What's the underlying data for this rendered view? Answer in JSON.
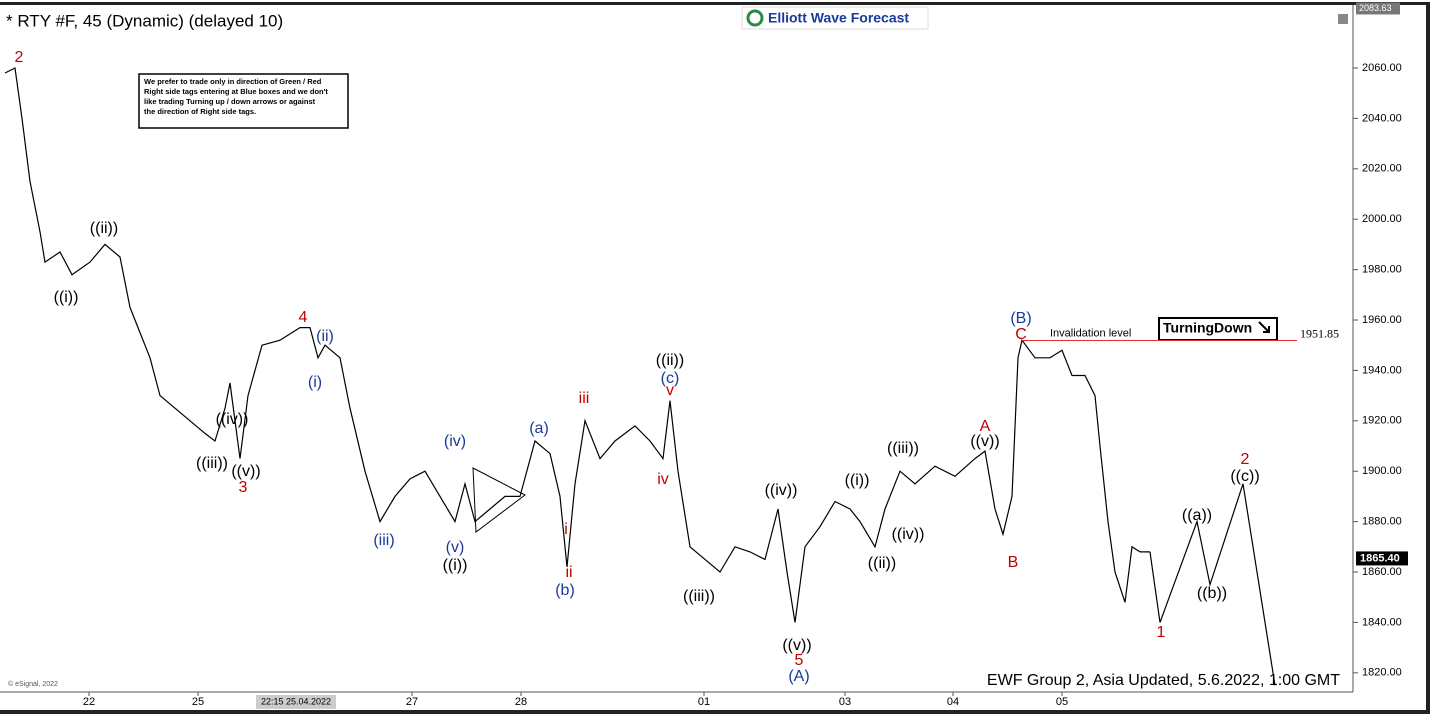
{
  "chart_data": {
    "type": "line",
    "title": "* RTY #F, 45 (Dynamic) (delayed 10)",
    "logo": "Elliott Wave Forecast",
    "note": [
      "We prefer to trade only in direction of Green / Red",
      "Right side tags entering at Blue boxes and we don't",
      "like trading Turning up / down arrows or against",
      "the direction of Right side tags."
    ],
    "footer": "EWF Group 2, Asia Updated, 5.6.2022, 1:00 GMT",
    "copyright": "© eSignal, 2022",
    "crosshair_label": "22:15 25.04.2022",
    "ylim": [
      1812,
      2085
    ],
    "xlim": [
      -1,
      269
    ],
    "yticks": [
      {
        "value": 1820,
        "label": "1820.00"
      },
      {
        "value": 1840,
        "label": "1840.00"
      },
      {
        "value": 1860,
        "label": "1860.00"
      },
      {
        "value": 1880,
        "label": "1880.00"
      },
      {
        "value": 1900,
        "label": "1900.00"
      },
      {
        "value": 1920,
        "label": "1920.00"
      },
      {
        "value": 1940,
        "label": "1940.00"
      },
      {
        "value": 1960,
        "label": "1960.00"
      },
      {
        "value": 1980,
        "label": "1980.00"
      },
      {
        "value": 2000,
        "label": "2000.00"
      },
      {
        "value": 2020,
        "label": "2020.00"
      },
      {
        "value": 2040,
        "label": "2040.00"
      },
      {
        "value": 2060,
        "label": "2060.00"
      }
    ],
    "xticks": [
      {
        "value": 16.8,
        "label": "22"
      },
      {
        "value": 38.6,
        "label": "25"
      },
      {
        "value": 81.4,
        "label": "27"
      },
      {
        "value": 103.2,
        "label": "28"
      },
      {
        "value": 139.8,
        "label": "01"
      },
      {
        "value": 168,
        "label": "03"
      },
      {
        "value": 189.6,
        "label": "04"
      },
      {
        "value": 211.4,
        "label": "05"
      }
    ],
    "series": [
      {
        "color": "#000000",
        "x": [
          0,
          2,
          3.4,
          5,
          7,
          8,
          11,
          13.4,
          17,
          20,
          23,
          25,
          27,
          29,
          31,
          34,
          37,
          40,
          42,
          44,
          45,
          47,
          48.6,
          51.4,
          55,
          59,
          61,
          62.6,
          64,
          67,
          69,
          72,
          75,
          78,
          81,
          84,
          87,
          90,
          92,
          94,
          97,
          100,
          103,
          106,
          109,
          111,
          112.4,
          114,
          116,
          119,
          122,
          126,
          129,
          131.6,
          133,
          134.6,
          137,
          140,
          143,
          146,
          149,
          152,
          154.6,
          156.4,
          158,
          160,
          163,
          166,
          169,
          171,
          174,
          176,
          179,
          182,
          186,
          190,
          194,
          196,
          198,
          199.6,
          201.4,
          202.6,
          203.4,
          206,
          209,
          211.4,
          213.4,
          216,
          218,
          219,
          220.6,
          222,
          224,
          225.4,
          227,
          229
        ],
        "values": [
          2058,
          2060,
          2040,
          2015,
          1995,
          1983,
          1987,
          1978,
          1983,
          1990,
          1985,
          1965,
          1955,
          1945,
          1930,
          1925,
          1920,
          1915,
          1912,
          1925,
          1935,
          1905,
          1930,
          1950,
          1952,
          1957,
          1957,
          1945,
          1950,
          1945,
          1925,
          1900,
          1880,
          1890,
          1897,
          1900,
          1890,
          1880,
          1895,
          1880,
          1885,
          1890,
          1890,
          1912,
          1907,
          1890,
          1862,
          1895,
          1920,
          1905,
          1912,
          1918,
          1912,
          1905,
          1928,
          1900,
          1870,
          1865,
          1860,
          1870,
          1868,
          1865,
          1885,
          1860,
          1840,
          1870,
          1878,
          1888,
          1885,
          1880,
          1870,
          1885,
          1900,
          1895,
          1902,
          1898,
          1905,
          1908,
          1885,
          1875,
          1890,
          1945,
          1952,
          1945,
          1945,
          1948,
          1938,
          1938,
          1930,
          1910,
          1880,
          1860,
          1848,
          1870,
          1868,
          1868
        ]
      },
      {
        "color": "#000000",
        "x": [
          229,
          231,
          238.4,
          241,
          247.6,
          254
        ],
        "values": [
          1868,
          1840,
          1880,
          1855,
          1895,
          1815
        ]
      }
    ],
    "invalidation": {
      "label": "Invalidation level",
      "value": 1951.85,
      "value_label": "1951.85",
      "color": "#e03030"
    },
    "turning": "TurningDown",
    "last_price": {
      "value": 1865.4,
      "label": "1865.40"
    },
    "top_price": {
      "value": 2083.63,
      "label": "2083.63"
    },
    "wave_labels": [
      {
        "text": "2",
        "color": "#c00000"
      },
      {
        "text": "((i))",
        "color": "#000"
      },
      {
        "text": "((ii))",
        "color": "#000"
      },
      {
        "text": "((iii))",
        "color": "#000"
      },
      {
        "text": "((iv))",
        "color": "#000"
      },
      {
        "text": "((v))",
        "color": "#000"
      },
      {
        "text": "3",
        "color": "#c00000"
      },
      {
        "text": "4",
        "color": "#c00000"
      },
      {
        "text": "(ii)",
        "color": "#1a3a9c"
      },
      {
        "text": "(i)",
        "color": "#1a3a9c"
      },
      {
        "text": "(iii)",
        "color": "#1a3a9c"
      },
      {
        "text": "(iv)",
        "color": "#1a3a9c"
      },
      {
        "text": "(v)",
        "color": "#1a3a9c"
      },
      {
        "text": "((i))",
        "color": "#000"
      },
      {
        "text": "(a)",
        "color": "#1a3a9c"
      },
      {
        "text": "iii",
        "color": "#c00000"
      },
      {
        "text": "i",
        "color": "#c00000"
      },
      {
        "text": "ii",
        "color": "#c00000"
      },
      {
        "text": "(b)",
        "color": "#1a3a9c"
      },
      {
        "text": "((ii))",
        "color": "#000"
      },
      {
        "text": "(c)",
        "color": "#1a3a9c"
      },
      {
        "text": "v",
        "color": "#c00000"
      },
      {
        "text": "iv",
        "color": "#c00000"
      },
      {
        "text": "((iii))",
        "color": "#000"
      },
      {
        "text": "((iv))",
        "color": "#000"
      },
      {
        "text": "((v))",
        "color": "#000"
      },
      {
        "text": "5",
        "color": "#c00000"
      },
      {
        "text": "(A)",
        "color": "#1a3a9c"
      },
      {
        "text": "((i))",
        "color": "#000"
      },
      {
        "text": "((ii))",
        "color": "#000"
      },
      {
        "text": "((iii))",
        "color": "#000"
      },
      {
        "text": "((iv))",
        "color": "#000"
      },
      {
        "text": "((v))",
        "color": "#000"
      },
      {
        "text": "A",
        "color": "#c00000"
      },
      {
        "text": "B",
        "color": "#c00000"
      },
      {
        "text": "(B)",
        "color": "#1a3a9c"
      },
      {
        "text": "C",
        "color": "#c00000"
      },
      {
        "text": "((a))",
        "color": "#000"
      },
      {
        "text": "((b))",
        "color": "#000"
      },
      {
        "text": "1",
        "color": "#c00000"
      },
      {
        "text": "2",
        "color": "#c00000"
      },
      {
        "text": "((c))",
        "color": "#000"
      }
    ]
  }
}
